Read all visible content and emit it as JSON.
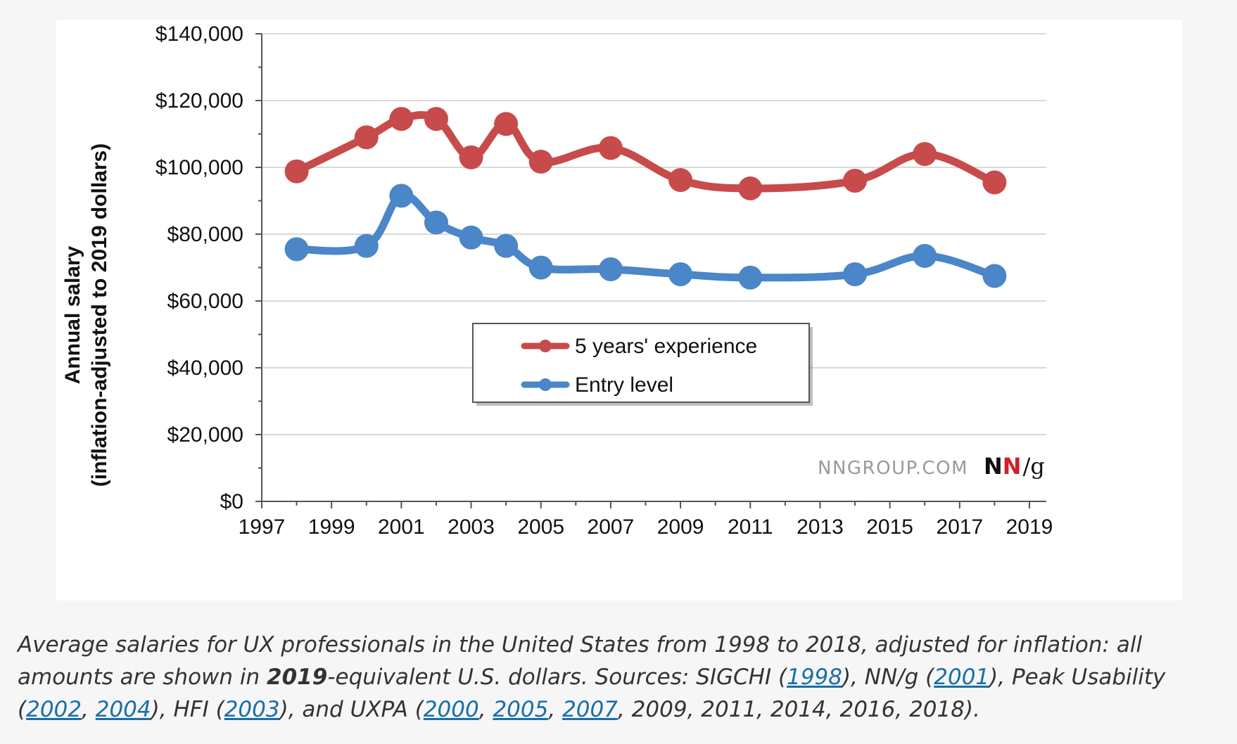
{
  "colors": {
    "series_experience": "#c84b4b",
    "series_entry": "#4a86c8",
    "grid": "#d9d9d9",
    "axis": "#555555",
    "logo_n1": "#111111",
    "logo_n2": "#d0202a",
    "link": "#1a6fa5"
  },
  "chart_data": {
    "type": "line",
    "title": "",
    "ylabel_line1": "Annual salary",
    "ylabel_line2": "(inflation-adjusted  to 2019  dollars)",
    "xlabel": "",
    "xlim": [
      1997,
      2019
    ],
    "ylim": [
      0,
      140000
    ],
    "grid": true,
    "legend_position": "center",
    "x_ticks": [
      1997,
      1999,
      2001,
      2003,
      2005,
      2007,
      2009,
      2011,
      2013,
      2015,
      2017,
      2019
    ],
    "x_tick_labels": [
      "1997",
      "1999",
      "2001",
      "2003",
      "2005",
      "2007",
      "2009",
      "2011",
      "2013",
      "2015",
      "2017",
      "2019"
    ],
    "y_ticks": [
      0,
      20000,
      40000,
      60000,
      80000,
      100000,
      120000,
      140000
    ],
    "y_tick_labels": [
      "$0",
      "$20,000",
      "$40,000",
      "$60,000",
      "$80,000",
      "$100,000",
      "$120,000",
      "$140,000"
    ],
    "series": [
      {
        "name": "5 years' experience",
        "color": "#c84b4b",
        "x": [
          1998,
          2000,
          2001,
          2002,
          2003,
          2004,
          2005,
          2007,
          2009,
          2011,
          2014,
          2016,
          2018
        ],
        "values": [
          98800,
          109000,
          114500,
          114500,
          103000,
          113000,
          101700,
          105800,
          96200,
          93700,
          96000,
          104000,
          95500
        ]
      },
      {
        "name": "Entry level",
        "color": "#4a86c8",
        "x": [
          1998,
          2000,
          2001,
          2002,
          2003,
          2004,
          2005,
          2007,
          2009,
          2011,
          2014,
          2016,
          2018
        ],
        "values": [
          75500,
          76500,
          91500,
          83500,
          79000,
          76500,
          70000,
          69500,
          68000,
          67000,
          68000,
          73500,
          67500
        ]
      }
    ]
  },
  "watermark": {
    "site": "NNGROUP.COM",
    "logo_n1": "N",
    "logo_n2": "N",
    "logo_suffix": "/g"
  },
  "caption": {
    "p1": "Average salaries for UX professionals in the United States from 1998 to 2018, adjusted for inflation: all amounts are shown in ",
    "bold_year": "2019",
    "p2": "-equivalent U.S. dollars. Sources: SIGCHI (",
    "link_1998": "1998",
    "p3": "), NN/g (",
    "link_2001": "2001",
    "p4": "), Peak Usability (",
    "link_2002": "2002",
    "sep1": ", ",
    "link_2004": "2004",
    "p5": "), HFI (",
    "link_2003": "2003",
    "p6": "), and UXPA (",
    "link_2000": "2000",
    "sep2": ", ",
    "link_2005": "2005",
    "sep3": ", ",
    "link_2007": "2007",
    "p7": ", 2009, 2011, 2014, 2016, 2018)."
  }
}
